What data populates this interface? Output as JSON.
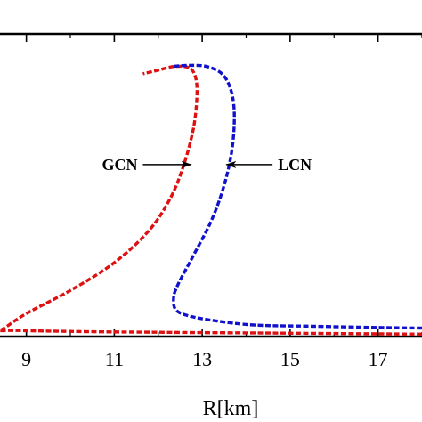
{
  "chart_data": {
    "type": "line",
    "xlabel": "R[km]",
    "x_ticks": [
      9,
      11,
      13,
      15,
      17
    ],
    "xlim": [
      8.4,
      18.0
    ],
    "ylim": [
      0.0,
      2.5
    ],
    "grid": false,
    "series": [
      {
        "name": "GCN",
        "color": "#dd1111",
        "line_style": "dashed",
        "points": [
          [
            18.0,
            0.02
          ],
          [
            16.0,
            0.025
          ],
          [
            14.0,
            0.03
          ],
          [
            12.0,
            0.035
          ],
          [
            10.5,
            0.04
          ],
          [
            9.5,
            0.045
          ],
          [
            8.7,
            0.05
          ],
          [
            8.4,
            0.05
          ],
          [
            8.5,
            0.07
          ],
          [
            9.0,
            0.19
          ],
          [
            10.0,
            0.38
          ],
          [
            11.0,
            0.61
          ],
          [
            11.8,
            0.88
          ],
          [
            12.3,
            1.16
          ],
          [
            12.6,
            1.44
          ],
          [
            12.8,
            1.72
          ],
          [
            12.88,
            1.98
          ],
          [
            12.85,
            2.14
          ],
          [
            12.7,
            2.22
          ],
          [
            12.35,
            2.23
          ],
          [
            12.0,
            2.2
          ],
          [
            11.65,
            2.17
          ]
        ]
      },
      {
        "name": "LCN",
        "color": "#1111cc",
        "line_style": "dashed",
        "points": [
          [
            18.0,
            0.07
          ],
          [
            17.0,
            0.075
          ],
          [
            15.5,
            0.085
          ],
          [
            14.2,
            0.095
          ],
          [
            13.3,
            0.13
          ],
          [
            12.7,
            0.17
          ],
          [
            12.4,
            0.22
          ],
          [
            12.35,
            0.32
          ],
          [
            12.45,
            0.43
          ],
          [
            12.8,
            0.67
          ],
          [
            13.2,
            0.95
          ],
          [
            13.5,
            1.25
          ],
          [
            13.68,
            1.55
          ],
          [
            13.73,
            1.84
          ],
          [
            13.65,
            2.04
          ],
          [
            13.45,
            2.17
          ],
          [
            13.1,
            2.23
          ],
          [
            12.7,
            2.24
          ],
          [
            12.3,
            2.23
          ]
        ]
      }
    ],
    "annotations": [
      {
        "id": "gcn",
        "text": "GCN",
        "target_series": "GCN",
        "arrow_to": [
          12.75,
          1.42
        ],
        "arrow_from": [
          11.65,
          1.42
        ]
      },
      {
        "id": "lcn",
        "text": "LCN",
        "target_series": "LCN",
        "arrow_to": [
          13.55,
          1.42
        ],
        "arrow_from": [
          14.6,
          1.42
        ]
      }
    ]
  }
}
